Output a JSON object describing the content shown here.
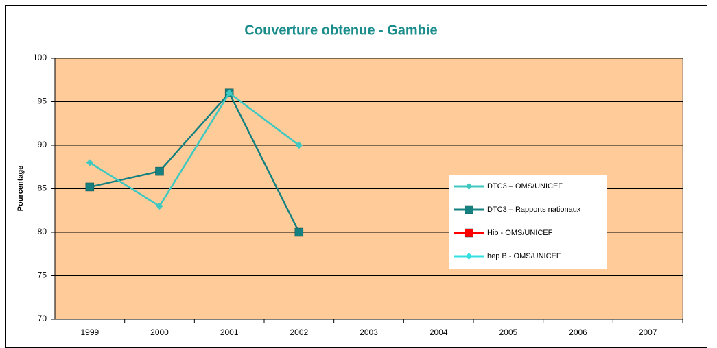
{
  "chart_data": {
    "type": "line",
    "title": "Couverture obtenue  - Gambie",
    "y_label": "Pourcentage",
    "categories": [
      "1999",
      "2000",
      "2001",
      "2002",
      "2003",
      "2004",
      "2005",
      "2006",
      "2007"
    ],
    "series": [
      {
        "name": "DTC3 – OMS/UNICEF",
        "color": "#40c8c0",
        "marker": "diamond",
        "values": [
          88,
          83,
          96,
          90,
          null,
          null,
          null,
          null,
          null
        ]
      },
      {
        "name": "DTC3 – Rapports nationaux",
        "color": "#148080",
        "marker": "square",
        "values": [
          85.2,
          87,
          96,
          80,
          null,
          null,
          null,
          null,
          null
        ]
      },
      {
        "name": "Hib - OMS/UNICEF",
        "color": "#ff0000",
        "marker": "square",
        "values": [
          null,
          null,
          null,
          null,
          null,
          null,
          null,
          null,
          null
        ]
      },
      {
        "name": "hep B - OMS/UNICEF",
        "color": "#33e0e0",
        "marker": "diamond",
        "values": [
          88,
          83,
          96,
          90,
          null,
          null,
          null,
          null,
          null
        ]
      }
    ],
    "ylim": [
      70,
      100
    ],
    "yticks": [
      70,
      75,
      80,
      85,
      90,
      95,
      100
    ],
    "grid": true,
    "legend": "right"
  }
}
